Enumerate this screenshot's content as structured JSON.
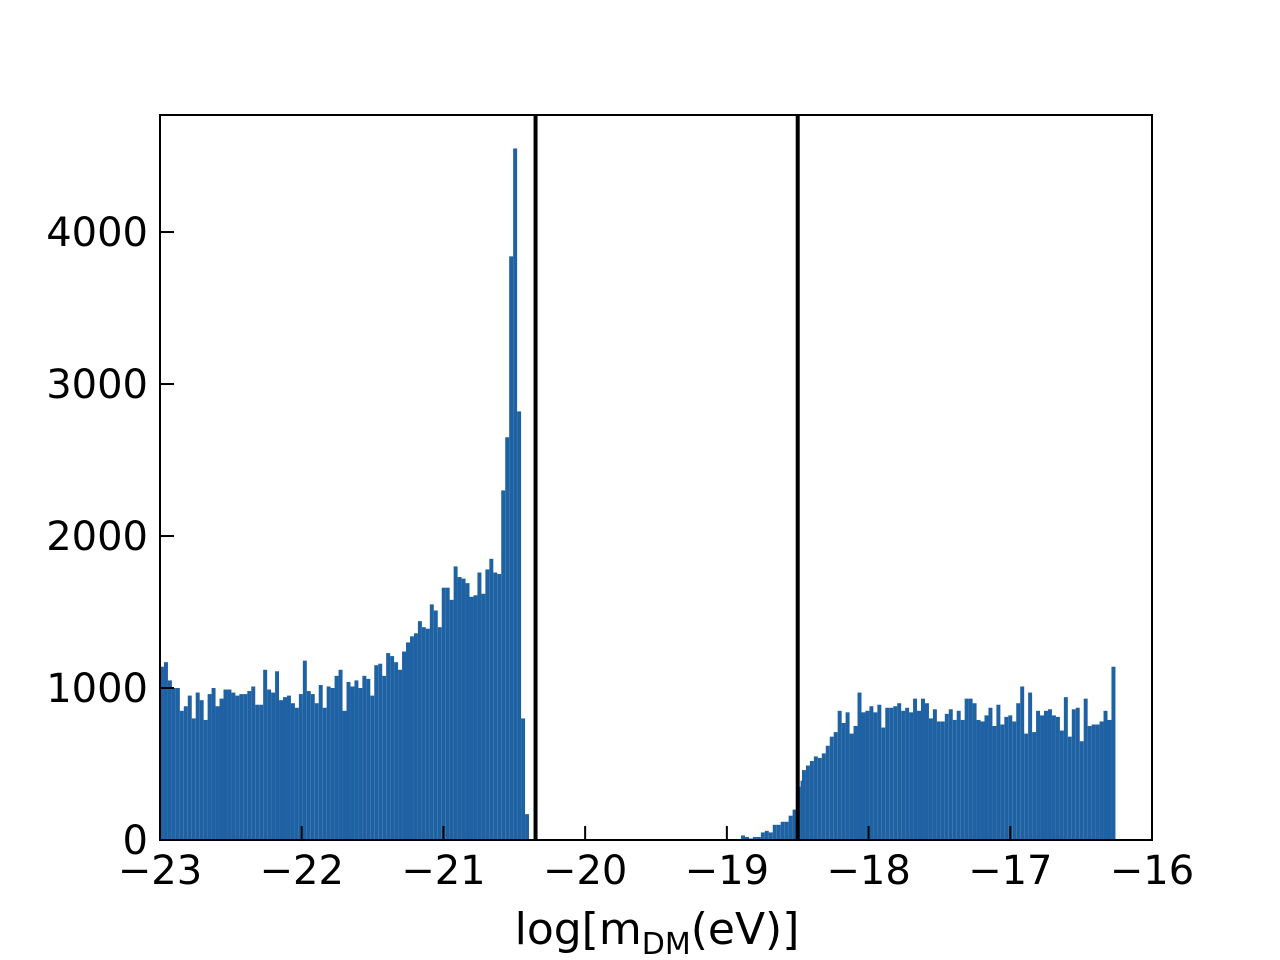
{
  "chart_data": {
    "type": "bar",
    "title": "",
    "xlabel": {
      "base": "log[m",
      "subscript": "DM",
      "rest": "(eV)]"
    },
    "ylabel": "",
    "xlim": [
      -23,
      -16
    ],
    "ylim": [
      0,
      4770
    ],
    "x_ticks": [
      -23,
      -22,
      -21,
      -20,
      -19,
      -18,
      -17,
      -16
    ],
    "x_tick_labels": [
      "−23",
      "−22",
      "−21",
      "−20",
      "−19",
      "−18",
      "−17",
      "−16"
    ],
    "y_ticks": [
      0,
      1000,
      2000,
      3000,
      4000
    ],
    "y_tick_labels": [
      "0",
      "1000",
      "2000",
      "3000",
      "4000"
    ],
    "bin_width": 0.028,
    "bar_color": "#1f62a4",
    "vlines": [
      -20.35,
      -18.5
    ],
    "vline_color": "#000000",
    "grid": false,
    "series": [
      {
        "segments": [
          {
            "x_start": -23.0,
            "values": [
              1140,
              1170,
              1050,
              1000,
              1000,
              850,
              880,
              950,
              800,
              970,
              920,
              790,
              960,
              1000,
              880,
              930,
              990,
              990,
              970,
              950,
              960,
              960,
              980,
              1010,
              890,
              890,
              1120,
              990,
              970,
              1110,
              920,
              940,
              950,
              900,
              870,
              960,
              1180,
              980,
              960,
              900,
              1020,
              870,
              1010,
              1000,
              1080,
              1120,
              850,
              1040,
              1010,
              1050,
              1000,
              1080,
              1060,
              950,
              1150,
              1160,
              1080,
              1230,
              1210,
              1170,
              1120,
              1240,
              1300,
              1340,
              1360,
              1440,
              1400,
              1390,
              1550,
              1510,
              1400,
              1660,
              1660,
              1580,
              1800,
              1730,
              1720,
              1690,
              1600,
              1610,
              1760,
              1620,
              1780,
              1850,
              1760,
              1750,
              2300,
              2650,
              3840,
              4550,
              2820,
              800,
              170
            ]
          },
          {
            "x_start": -18.9,
            "values": [
              30,
              20,
              10,
              20,
              20,
              50,
              60,
              50,
              100,
              100,
              120,
              120,
              160,
              200,
              350,
              390
            ]
          },
          {
            "x_start": -18.47,
            "values": [
              460,
              490,
              520,
              550,
              540,
              570,
              620,
              680,
              710,
              850,
              770,
              840,
              700,
              750,
              970,
              840,
              850,
              880,
              840,
              890,
              740,
              870,
              870,
              880,
              900,
              850,
              870,
              840,
              930,
              850,
              930,
              900,
              800,
              860,
              780,
              780,
              830,
              860,
              790,
              850,
              790,
              930,
              930,
              900,
              790,
              780,
              820,
              870,
              750,
              890,
              760,
              810,
              820,
              780,
              900,
              1010,
              700,
              970,
              710,
              850,
              820,
              850,
              860,
              820,
              810,
              720,
              940,
              680,
              860,
              870,
              650,
              930,
              750,
              760,
              760,
              780,
              850,
              790,
              1140
            ]
          }
        ]
      }
    ]
  }
}
